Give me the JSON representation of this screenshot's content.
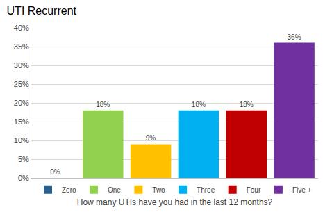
{
  "chart_data": {
    "type": "bar",
    "title": "UTI Recurrent",
    "x_label": "How many UTIs have you had in the last 12 months?",
    "categories": [
      "Zero",
      "One",
      "Two",
      "Three",
      "Four",
      "Five +"
    ],
    "values": [
      0,
      18,
      9,
      18,
      18,
      36
    ],
    "value_labels": [
      "0%",
      "18%",
      "9%",
      "18%",
      "18%",
      "36%"
    ],
    "colors": [
      "#2a5e8c",
      "#92d050",
      "#ffc000",
      "#00b0f0",
      "#c00000",
      "#7030a0"
    ],
    "ylim": [
      0,
      40
    ],
    "yticks": [
      {
        "value": 0,
        "label": "0%"
      },
      {
        "value": 5,
        "label": "5%"
      },
      {
        "value": 10,
        "label": "10%"
      },
      {
        "value": 15,
        "label": "15%"
      },
      {
        "value": 20,
        "label": "20%"
      },
      {
        "value": 25,
        "label": "25%"
      },
      {
        "value": 30,
        "label": "30%"
      },
      {
        "value": 35,
        "label": "35%"
      },
      {
        "value": 40,
        "label": "40%"
      }
    ],
    "grid": true,
    "legend": "bottom",
    "data_labels": true,
    "tick_labels": "y"
  }
}
